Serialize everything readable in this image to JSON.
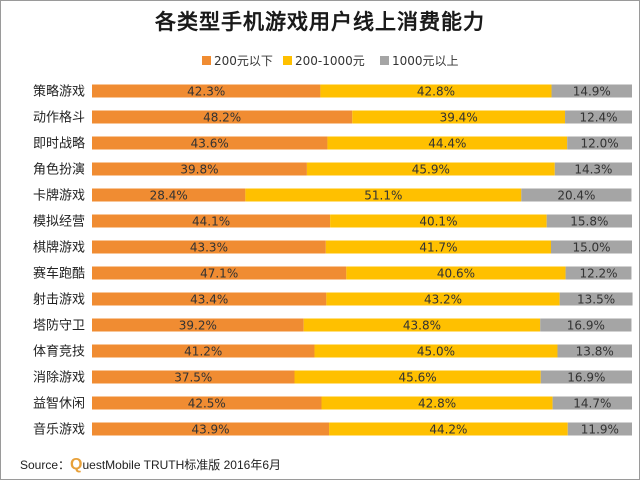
{
  "chart_data": {
    "type": "bar",
    "orientation": "horizontal",
    "stacked": true,
    "title": "各类型手机游戏用户线上消费能力",
    "legend_position": "top",
    "categories": [
      "策略游戏",
      "动作格斗",
      "即时战略",
      "角色扮演",
      "卡牌游戏",
      "模拟经营",
      "棋牌游戏",
      "赛车跑酷",
      "射击游戏",
      "塔防守卫",
      "体育竞技",
      "消除游戏",
      "益智休闲",
      "音乐游戏"
    ],
    "series": [
      {
        "name": "200元以下",
        "color": "#f08c32",
        "values": [
          42.3,
          48.2,
          43.6,
          39.8,
          28.4,
          44.1,
          43.3,
          47.1,
          43.4,
          39.2,
          41.2,
          37.5,
          42.5,
          43.9
        ]
      },
      {
        "name": "200-1000元",
        "color": "#ffc000",
        "values": [
          42.8,
          39.4,
          44.4,
          45.9,
          51.1,
          40.1,
          41.7,
          40.6,
          43.2,
          43.8,
          45.0,
          45.6,
          42.8,
          44.2
        ]
      },
      {
        "name": "1000元以上",
        "color": "#a5a5a5",
        "values": [
          14.9,
          12.4,
          12.0,
          14.3,
          20.4,
          15.8,
          15.0,
          12.2,
          13.5,
          16.9,
          13.8,
          16.9,
          14.7,
          11.9
        ]
      }
    ],
    "value_suffix": "%",
    "xlim": [
      0,
      100
    ]
  },
  "source": {
    "prefix": "Source：",
    "brand_initial": "Q",
    "text": "uestMobile TRUTH标准版 2016年6月"
  }
}
